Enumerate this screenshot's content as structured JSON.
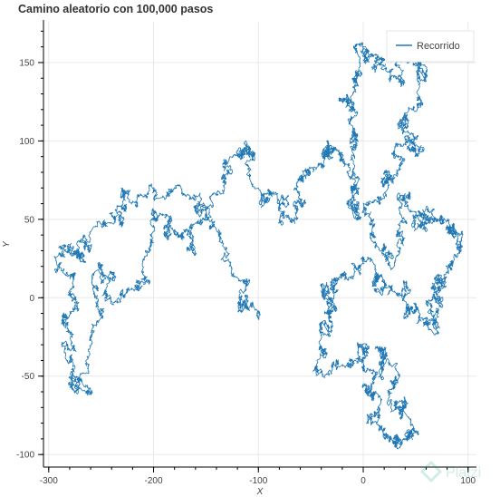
{
  "chart_data": {
    "type": "line",
    "title": "Camino aleatorio con 100,000 pasos",
    "xlabel": "X",
    "ylabel": "Y",
    "xlim": [
      -305,
      108
    ],
    "ylim": [
      -108,
      176
    ],
    "x_ticks": [
      -300,
      -200,
      -100,
      0,
      100
    ],
    "y_ticks": [
      -100,
      -50,
      0,
      50,
      100,
      150
    ],
    "x_tick_labels": [
      "-300",
      "-200",
      "-100",
      "0",
      "100"
    ],
    "y_tick_labels": [
      "-100",
      "-50",
      "0",
      "50",
      "100",
      "150"
    ],
    "grid": true,
    "legend_position": "top-right",
    "series": [
      {
        "name": "Recorrido",
        "color": "#1f77b4",
        "steps": 100000,
        "key_points": [
          [
            -100,
            -10
          ],
          [
            -118,
            -8
          ],
          [
            -125,
            18
          ],
          [
            -150,
            55
          ],
          [
            -175,
            72
          ],
          [
            -215,
            60
          ],
          [
            -235,
            55
          ],
          [
            -260,
            42
          ],
          [
            -265,
            22
          ],
          [
            -285,
            30
          ],
          [
            -275,
            15
          ],
          [
            -285,
            -10
          ],
          [
            -282,
            -40
          ],
          [
            -275,
            -60
          ],
          [
            -262,
            -48
          ],
          [
            -255,
            8
          ],
          [
            -240,
            15
          ],
          [
            -225,
            5
          ],
          [
            -210,
            25
          ],
          [
            -200,
            52
          ],
          [
            -180,
            40
          ],
          [
            -160,
            30
          ],
          [
            -140,
            65
          ],
          [
            -125,
            90
          ],
          [
            -110,
            95
          ],
          [
            -100,
            70
          ],
          [
            -80,
            60
          ],
          [
            -65,
            48
          ],
          [
            -60,
            75
          ],
          [
            -40,
            85
          ],
          [
            -35,
            100
          ],
          [
            -20,
            90
          ],
          [
            -15,
            60
          ],
          [
            -10,
            55
          ],
          [
            -5,
            100
          ],
          [
            -10,
            120
          ],
          [
            -5,
            135
          ],
          [
            -8,
            160
          ],
          [
            10,
            155
          ],
          [
            25,
            140
          ],
          [
            45,
            160
          ],
          [
            58,
            148
          ],
          [
            55,
            122
          ],
          [
            40,
            118
          ],
          [
            50,
            95
          ],
          [
            30,
            92
          ],
          [
            25,
            75
          ],
          [
            15,
            62
          ],
          [
            10,
            35
          ],
          [
            30,
            20
          ],
          [
            35,
            58
          ],
          [
            50,
            55
          ],
          [
            60,
            48
          ],
          [
            70,
            50
          ],
          [
            85,
            45
          ],
          [
            95,
            40
          ],
          [
            80,
            20
          ],
          [
            72,
            5
          ],
          [
            60,
            -2
          ],
          [
            65,
            -20
          ],
          [
            50,
            -10
          ],
          [
            40,
            5
          ],
          [
            20,
            10
          ],
          [
            5,
            25
          ],
          [
            -20,
            15
          ],
          [
            -30,
            0
          ],
          [
            -35,
            10
          ],
          [
            -30,
            -15
          ],
          [
            -40,
            -35
          ],
          [
            -25,
            -40
          ],
          [
            -5,
            -30
          ],
          [
            0,
            -45
          ],
          [
            5,
            -60
          ],
          [
            15,
            -75
          ],
          [
            25,
            -90
          ],
          [
            35,
            -95
          ],
          [
            48,
            -82
          ],
          [
            35,
            -70
          ],
          [
            30,
            -55
          ],
          [
            20,
            -40
          ],
          [
            15,
            -30
          ]
        ]
      }
    ]
  },
  "watermark": {
    "text": "Platzi"
  }
}
